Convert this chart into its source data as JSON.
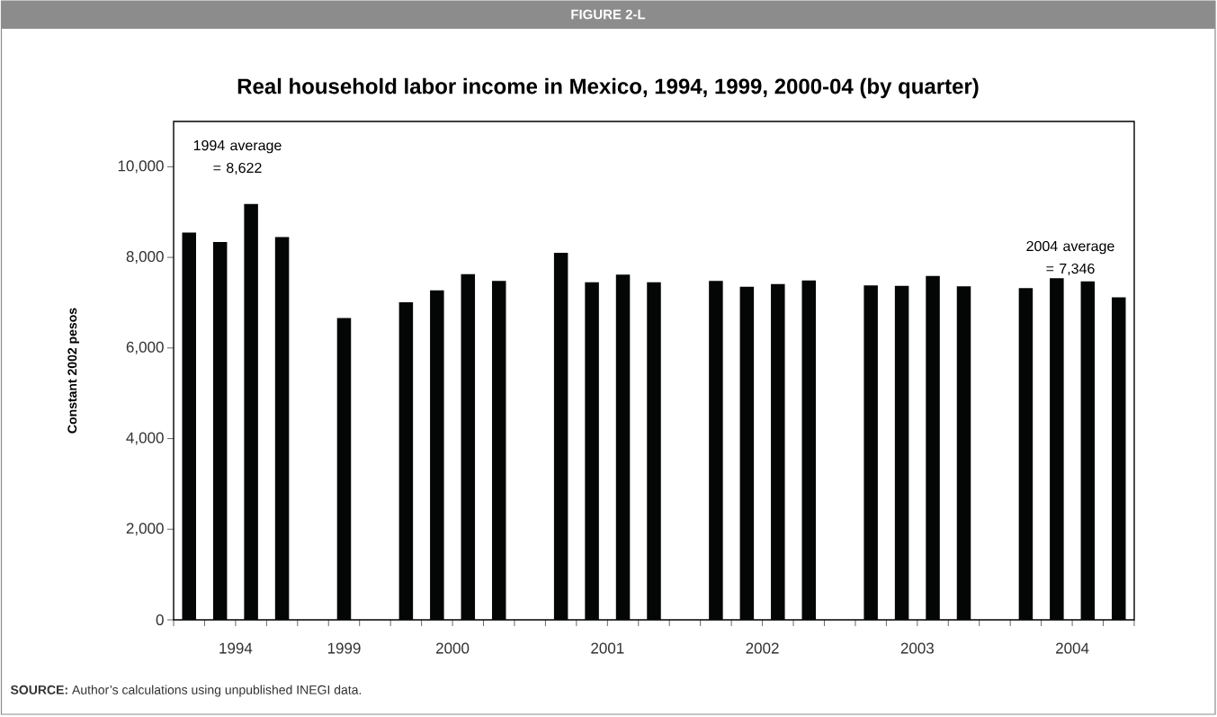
{
  "chart_data": {
    "type": "bar",
    "title": "Real household labor income in Mexico, 1994, 1999, 2000-04 (by quarter)",
    "ylabel": "Constant 2002 pesos",
    "categories": [
      null,
      "1994",
      null,
      null,
      null,
      "1999",
      null,
      null,
      "2000",
      null,
      null,
      null,
      null,
      "2001",
      null,
      null,
      null,
      null,
      "2002",
      null,
      null,
      null,
      null,
      "2003",
      null,
      null,
      null,
      null,
      "2004",
      null,
      null
    ],
    "values": [
      8550,
      8340,
      9180,
      8450,
      null,
      6660,
      null,
      7010,
      7270,
      7630,
      7480,
      null,
      8100,
      7450,
      7620,
      7450,
      null,
      7480,
      7350,
      7410,
      7490,
      null,
      7380,
      7370,
      7590,
      7360,
      null,
      7320,
      7540,
      7470,
      7120
    ],
    "color": "#030605",
    "ylim": [
      0,
      11000
    ],
    "yticks": [
      0,
      {
        "value": 2000,
        "label": "2,000"
      },
      {
        "value": 4000,
        "label": "4,000"
      },
      {
        "value": 6000,
        "label": "6,000"
      },
      {
        "value": 8000,
        "label": "8,000"
      },
      {
        "value": 10000,
        "label": "10,000"
      }
    ],
    "annotations": [
      "FIGURE 2-L",
      "1994 average = 8,622",
      "2004 average = 7,346",
      "**SOURCE:** Author’s calculations using unpublished INEGI data."
    ]
  }
}
